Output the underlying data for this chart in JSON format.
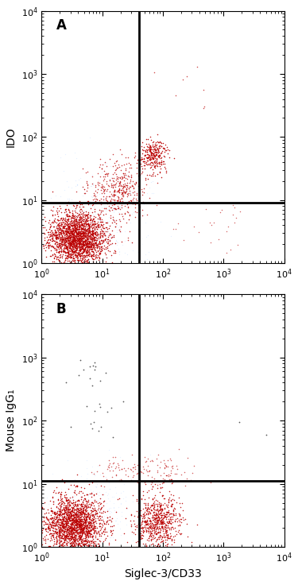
{
  "panel_A": {
    "label": "A",
    "ylabel": "IDO",
    "vline": 40,
    "hline": 9.0,
    "xlim": [
      1,
      10000
    ],
    "ylim": [
      1,
      10000
    ]
  },
  "panel_B": {
    "label": "B",
    "ylabel": "Mouse IgG₁",
    "xlabel": "Siglec-3/CD33",
    "vline": 40,
    "hline": 11.0,
    "xlim": [
      1,
      10000
    ],
    "ylim": [
      1,
      10000
    ]
  },
  "fig_bg": "#ffffff",
  "plot_bg": "#ffffff",
  "dot_size": 1.2,
  "line_color": "#000000",
  "line_width": 2.0,
  "red_dark": "#bb0000",
  "red_light": "#cc4444",
  "dark_dot": "#222222"
}
